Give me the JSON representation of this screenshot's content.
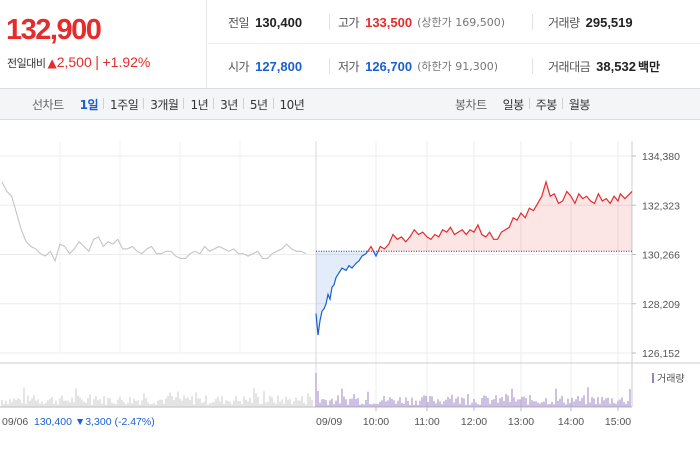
{
  "summary": {
    "price": "132,900",
    "change_label": "전일대비",
    "change_arrow": "▲",
    "change": "2,500",
    "change_sep": "|",
    "change_pct": "+1.92%",
    "prev_label": "전일",
    "prev": "130,400",
    "high_label": "고가",
    "high": "133,500",
    "upper_limit": "(상한가 169,500)",
    "volume_label": "거래량",
    "volume": "295,519",
    "open_label": "시가",
    "open": "127,800",
    "low_label": "저가",
    "low": "126,700",
    "lower_limit": "(하한가 91,300)",
    "amount_label": "거래대금",
    "amount": "38,532",
    "amount_unit": "백만",
    "colors": {
      "up": "#e52b2b",
      "down": "#1a5fd2"
    }
  },
  "tabs": {
    "line_label": "선차트",
    "line_tabs": [
      "1일",
      "1주일",
      "3개월",
      "1년",
      "3년",
      "5년",
      "10년"
    ],
    "line_active": 0,
    "candle_label": "봉차트",
    "candle_tabs": [
      "일봉",
      "주봉",
      "월봉"
    ]
  },
  "chart_data": {
    "type": "line",
    "title": "",
    "xlabel": "",
    "ylabel": "",
    "ylim": [
      126152,
      134380
    ],
    "y_ticks": [
      "134,380",
      "132,323",
      "130,266",
      "128,209",
      "126,152"
    ],
    "y_tick_values": [
      134380,
      132323,
      130266,
      128209,
      126152
    ],
    "reference_price": 130400,
    "prev_day_label": "09/06",
    "prev_day_summary": "130,400",
    "prev_day_change": "▼3,300",
    "prev_day_pct": "(-2.47%)",
    "current_day_label": "09/09",
    "x_ticks": [
      "10:00",
      "11:00",
      "12:00",
      "13:00",
      "14:00",
      "15:00"
    ],
    "x_tick_times": [
      "10:00",
      "11:00",
      "12:00",
      "13:00",
      "14:00",
      "15:00"
    ],
    "volume_legend": "거래량",
    "grid": true,
    "series": [
      {
        "period": "previous day (09/06)",
        "color": "#c4c4c4",
        "values": [
          133300,
          132900,
          132700,
          132000,
          131300,
          130800,
          130600,
          130500,
          130300,
          130200,
          130400,
          130000,
          130700,
          130600,
          130300,
          130500,
          130800,
          130600,
          130400,
          130900,
          131000,
          130600,
          130800,
          130700,
          130900,
          130500,
          130500,
          130600,
          130400,
          130300,
          130500,
          130600,
          130300,
          130300,
          130400,
          130400,
          130200,
          130100,
          130100,
          130300,
          130400,
          130300,
          130600,
          130400,
          130500,
          130600,
          130500,
          130400,
          130500,
          130300,
          130300,
          130200,
          130300,
          130400,
          130100,
          130100,
          130300,
          130400,
          130500,
          130700,
          130500,
          130400,
          130400,
          130300
        ]
      },
      {
        "period": "current day (09/09)",
        "times": [
          "09:00",
          "09:02",
          "09:04",
          "09:06",
          "09:08",
          "09:10",
          "09:12",
          "09:14",
          "09:16",
          "09:18",
          "09:20",
          "09:23",
          "09:26",
          "09:30",
          "09:33",
          "09:36",
          "09:40",
          "09:43",
          "09:46",
          "09:50",
          "09:55",
          "10:00",
          "10:05",
          "10:10",
          "10:15",
          "10:20",
          "10:25",
          "10:30",
          "10:35",
          "10:40",
          "10:45",
          "10:50",
          "10:55",
          "11:00",
          "11:05",
          "11:10",
          "11:15",
          "11:20",
          "11:25",
          "11:30",
          "11:35",
          "11:40",
          "11:45",
          "11:50",
          "11:55",
          "12:00",
          "12:05",
          "12:10",
          "12:15",
          "12:20",
          "12:25",
          "12:30",
          "12:35",
          "12:40",
          "12:45",
          "12:50",
          "12:55",
          "13:00",
          "13:05",
          "13:10",
          "13:15",
          "13:20",
          "13:25",
          "13:30",
          "13:35",
          "13:40",
          "13:45",
          "13:50",
          "13:55",
          "14:00",
          "14:05",
          "14:10",
          "14:15",
          "14:20",
          "14:25",
          "14:30",
          "14:35",
          "14:40",
          "14:45",
          "14:50",
          "14:55",
          "15:00",
          "15:05",
          "15:10",
          "15:15",
          "15:20",
          "15:25",
          "15:30"
        ],
        "values": [
          127800,
          126900,
          127500,
          127900,
          128000,
          128200,
          128600,
          128400,
          128900,
          129000,
          129300,
          129500,
          129700,
          129600,
          129800,
          129700,
          129900,
          130000,
          130200,
          130300,
          130600,
          130200,
          130600,
          130500,
          130700,
          131100,
          130900,
          131000,
          130800,
          131000,
          131300,
          131100,
          131200,
          131000,
          130900,
          131100,
          131000,
          131300,
          131200,
          131400,
          131100,
          131200,
          131300,
          131100,
          131300,
          131200,
          131500,
          131100,
          131000,
          131200,
          130900,
          130900,
          131200,
          131300,
          131400,
          131800,
          131700,
          132000,
          131800,
          132200,
          132100,
          132400,
          132700,
          133300,
          132700,
          132800,
          132400,
          132500,
          132900,
          132700,
          132400,
          132800,
          132600,
          132700,
          132500,
          132400,
          132800,
          132500,
          132600,
          132400,
          132700,
          132500,
          132800,
          132700,
          132600,
          132700,
          132800,
          132900
        ]
      }
    ]
  }
}
